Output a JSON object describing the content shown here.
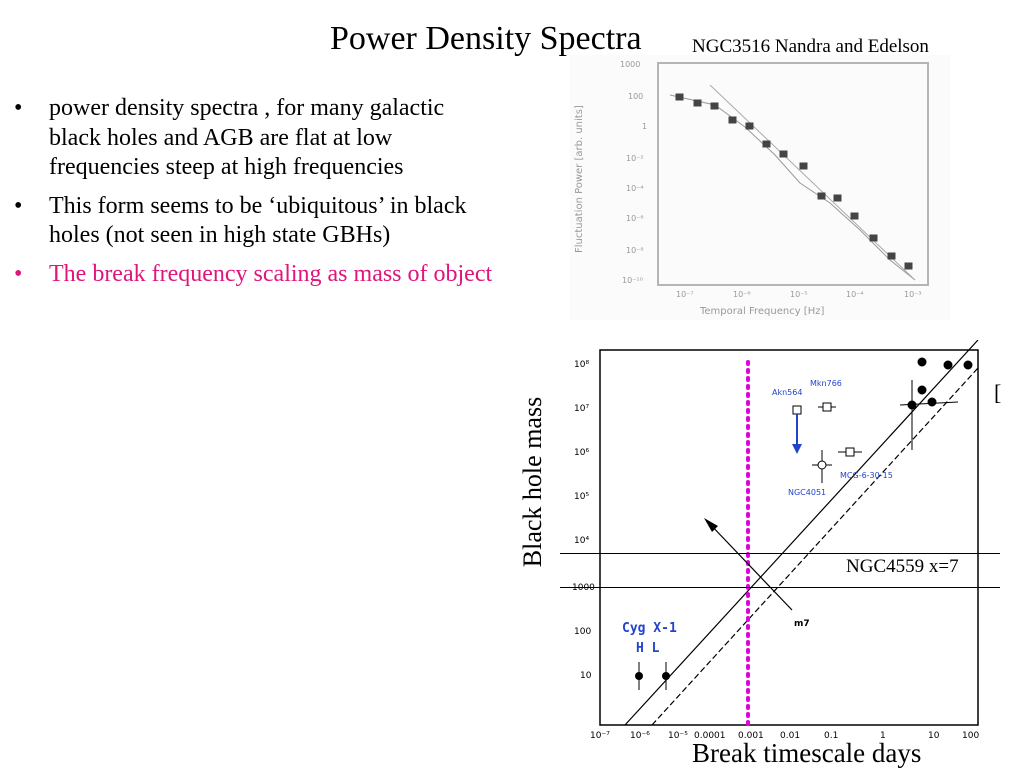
{
  "slide": {
    "title": "Power Density Spectra",
    "top_caption": "NGC3516 Nandra and Edelson",
    "bullets": [
      {
        "marker": "•",
        "text": "power density spectra , for many galactic black holes and AGB are flat at low frequencies steep at high frequencies",
        "highlight": false
      },
      {
        "marker": "•",
        "text": "This form seems to be ‘ubiquitous’ in black holes (not seen in high state GBHs)",
        "highlight": false
      },
      {
        "marker": "•",
        "text": "The break frequency scaling as mass of  object",
        "highlight": true
      }
    ],
    "highlight_color": "#e0147a"
  },
  "pds_figure": {
    "y_axis_label": "Fluctuation Power [arb. units]",
    "x_axis_label": "Temporal Frequency [Hz]",
    "y_tick_labels": [
      "1000",
      "100",
      "1",
      "10⁻²",
      "10⁻⁴",
      "10⁻⁶",
      "10⁻⁸",
      "10⁻¹⁰"
    ],
    "x_tick_labels": [
      "10⁻⁷",
      "10⁻⁶",
      "10⁻⁵",
      "10⁻⁴",
      "10⁻³"
    ]
  },
  "mass_figure": {
    "y_label": "Black hole mass",
    "x_label": "Break timescale days",
    "y_tick_labels": [
      "10⁸",
      "10⁷",
      "10⁶",
      "10⁵",
      "10⁴",
      "1000",
      "100",
      "10"
    ],
    "x_tick_labels": [
      "10⁻⁷",
      "10⁻⁶",
      "10⁻⁵",
      "0.0001",
      "0.001",
      "0.01",
      "0.1",
      "1",
      "10",
      "100"
    ],
    "object_labels": {
      "akn564": "Akn564",
      "mkn766": "Mkn766",
      "ngc4051": "NGC4051",
      "mcg": "MCG-6-30-15",
      "m7": "m7",
      "cyg": "Cyg  X-1",
      "cyg_states": "H    L"
    },
    "annotation": "NGC4559 x=7",
    "bracket": "["
  }
}
